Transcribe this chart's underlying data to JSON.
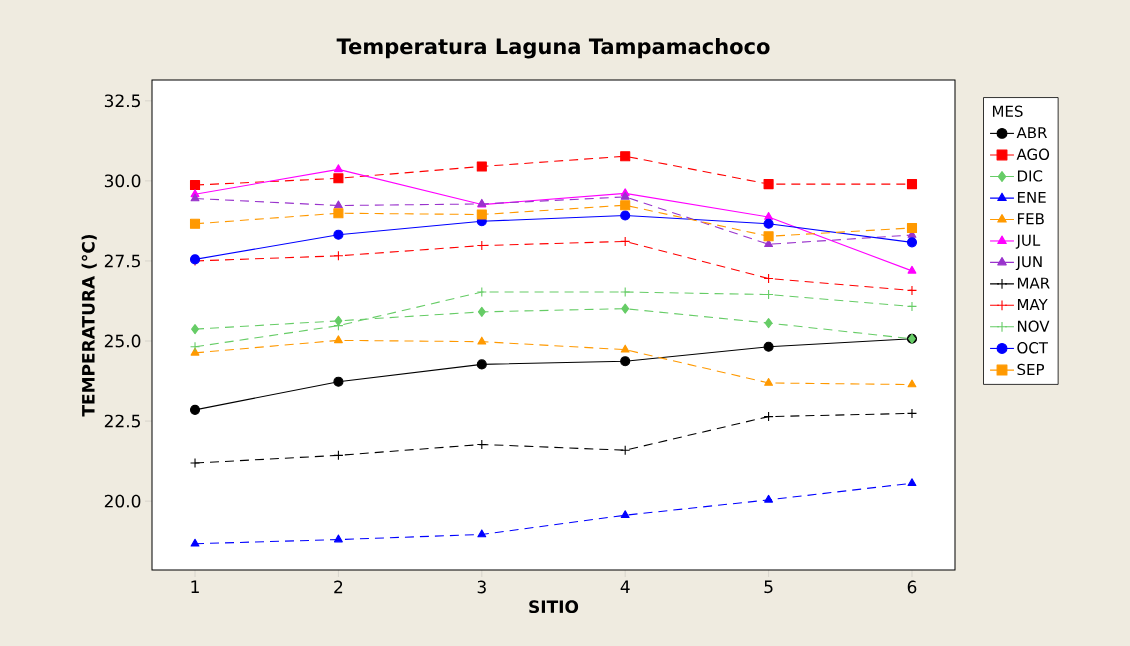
{
  "chart_data": {
    "type": "line",
    "title": "Temperatura Laguna Tampamachoco",
    "xlabel": "SITIO",
    "ylabel": "TEMPERATURA (°C)",
    "legend_title": "MES",
    "legend": "right",
    "grid": false,
    "x": [
      1,
      2,
      3,
      4,
      5,
      6
    ],
    "xlim": [
      0.7,
      6.3
    ],
    "xticks": [
      1,
      2,
      3,
      4,
      5,
      6
    ],
    "ylim": [
      17.85,
      33.15
    ],
    "yticks": [
      {
        "value": 20,
        "label": "20.0"
      },
      {
        "value": 22.5,
        "label": "22.5"
      },
      {
        "value": 25,
        "label": "25.0"
      },
      {
        "value": 27.5,
        "label": "27.5"
      },
      {
        "value": 30,
        "label": "30.0"
      },
      {
        "value": 32.5,
        "label": "32.5"
      }
    ],
    "series": [
      {
        "name": "ABR",
        "color": "#000000",
        "marker": "circle",
        "line_style": "solid",
        "values": [
          22.85,
          23.73,
          24.27,
          24.37,
          24.82,
          25.07
        ]
      },
      {
        "name": "AGO",
        "color": "#ff0000",
        "marker": "square",
        "line_style": "dashed",
        "values": [
          29.87,
          30.08,
          30.45,
          30.77,
          29.9,
          29.9
        ]
      },
      {
        "name": "DIC",
        "color": "#66cc66",
        "marker": "diamond",
        "line_style": "dashed",
        "values": [
          25.37,
          25.63,
          25.91,
          26.01,
          25.56,
          25.07
        ]
      },
      {
        "name": "ENE",
        "color": "#0000ff",
        "marker": "triangle",
        "line_style": "dashed",
        "values": [
          18.67,
          18.8,
          18.96,
          19.56,
          20.04,
          20.56
        ]
      },
      {
        "name": "FEB",
        "color": "#ff9900",
        "marker": "triangle",
        "line_style": "dashed",
        "values": [
          24.63,
          25.02,
          24.98,
          24.73,
          23.69,
          23.64
        ]
      },
      {
        "name": "JUL",
        "color": "#ff00ff",
        "marker": "triangle",
        "line_style": "solid",
        "values": [
          29.58,
          30.36,
          29.26,
          29.61,
          28.87,
          27.19
        ]
      },
      {
        "name": "JUN",
        "color": "#9933cc",
        "marker": "triangle",
        "line_style": "dashed",
        "values": [
          29.45,
          29.23,
          29.28,
          29.5,
          28.02,
          28.31
        ]
      },
      {
        "name": "MAR",
        "color": "#000000",
        "marker": "cross",
        "line_style": "dashed",
        "values": [
          21.19,
          21.43,
          21.77,
          21.59,
          22.64,
          22.74
        ]
      },
      {
        "name": "MAY",
        "color": "#ff0000",
        "marker": "cross",
        "line_style": "dashed",
        "values": [
          27.5,
          27.66,
          27.98,
          28.11,
          26.95,
          26.58
        ]
      },
      {
        "name": "NOV",
        "color": "#66cc66",
        "marker": "cross",
        "line_style": "dashed",
        "values": [
          24.82,
          25.48,
          26.53,
          26.53,
          26.45,
          26.08
        ]
      },
      {
        "name": "OCT",
        "color": "#0000ff",
        "marker": "circle",
        "line_style": "solid",
        "values": [
          27.55,
          28.32,
          28.74,
          28.92,
          28.66,
          28.08
        ]
      },
      {
        "name": "SEP",
        "color": "#ff9900",
        "marker": "square",
        "line_style": "dashed",
        "values": [
          28.66,
          28.99,
          28.95,
          29.24,
          28.27,
          28.53
        ]
      }
    ]
  }
}
